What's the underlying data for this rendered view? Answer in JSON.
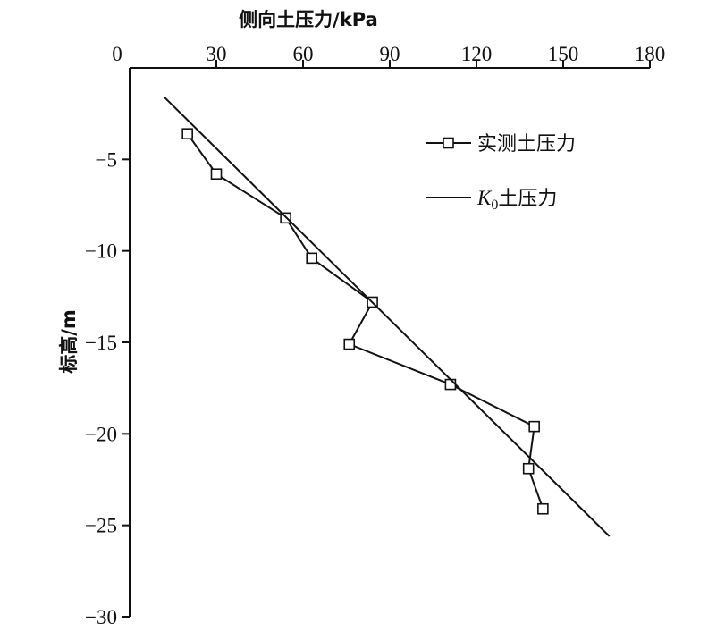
{
  "chart_data": {
    "type": "line",
    "xlabel": "侧向土压力/kPa",
    "ylabel": "标高/m",
    "xlim": [
      0,
      180
    ],
    "ylim": [
      -30,
      0
    ],
    "xticks": [
      0,
      30,
      60,
      90,
      120,
      150,
      180
    ],
    "yticks": [
      -5,
      -10,
      -15,
      -20,
      -25,
      -30
    ],
    "x_axis_position": "top",
    "grid": false,
    "legend_position": "top-right",
    "series": [
      {
        "name": "实测土压力",
        "marker": "square",
        "color": "#111111",
        "points": [
          {
            "x": 20,
            "y": -3.6
          },
          {
            "x": 30,
            "y": -5.8
          },
          {
            "x": 54,
            "y": -8.2
          },
          {
            "x": 63,
            "y": -10.4
          },
          {
            "x": 84,
            "y": -12.8
          },
          {
            "x": 76,
            "y": -15.1
          },
          {
            "x": 111,
            "y": -17.3
          },
          {
            "x": 140,
            "y": -19.6
          },
          {
            "x": 138,
            "y": -21.9
          },
          {
            "x": 143,
            "y": -24.1
          }
        ]
      },
      {
        "name": "K0土压力",
        "name_parts": {
          "main": "K",
          "sub": "0",
          "rest": "土压力"
        },
        "marker": "none",
        "color": "#111111",
        "points": [
          {
            "x": 12,
            "y": -1.6
          },
          {
            "x": 166,
            "y": -25.6
          }
        ]
      }
    ]
  }
}
